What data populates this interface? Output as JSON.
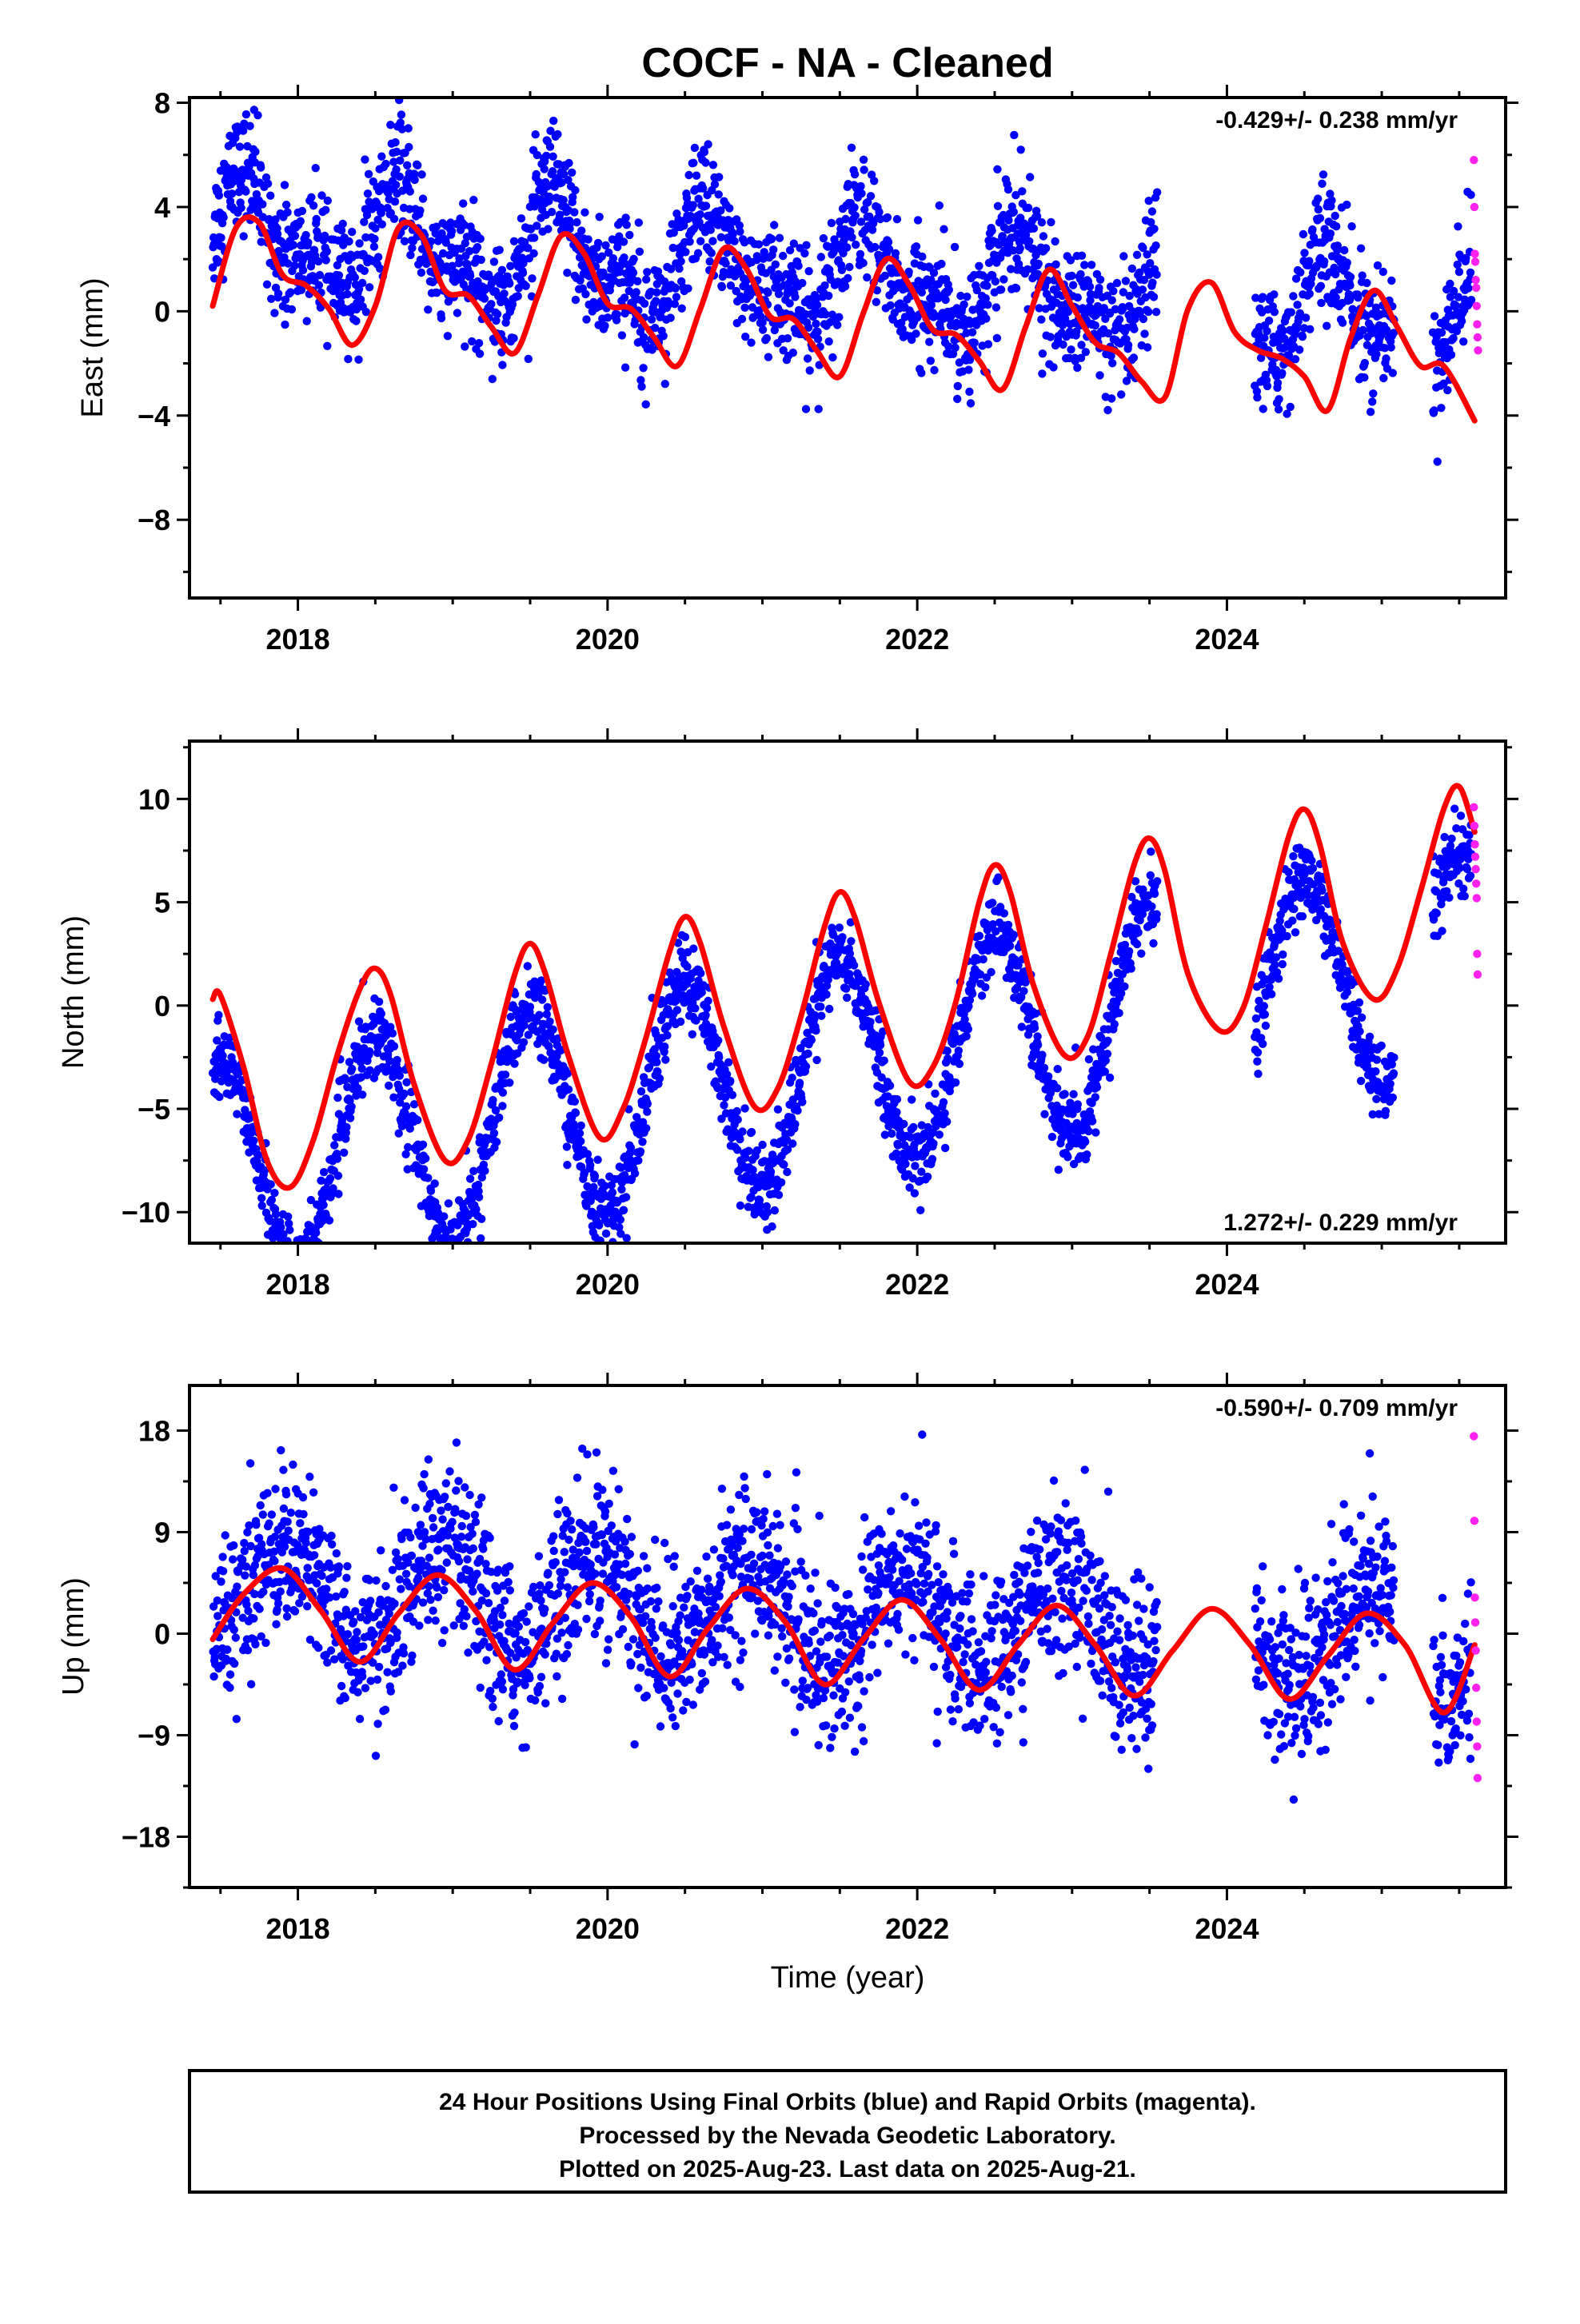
{
  "title": "COCF  - NA - Cleaned",
  "xlabel": "Time (year)",
  "footer": {
    "lines": [
      "24 Hour Positions Using Final Orbits (blue) and Rapid Orbits (magenta).",
      "Processed by the Nevada Geodetic Laboratory.",
      "Plotted on 2025-Aug-23. Last data on 2025-Aug-21."
    ]
  },
  "colors": {
    "final_orbits": "#0000ff",
    "rapid_orbits": "#ff22ee",
    "model_fit": "#ff0000",
    "frame": "#000000"
  },
  "chart_data": [
    {
      "type": "scatter",
      "ylabel": "East (mm)",
      "rate_label": "-0.429+/- 0.238 mm/yr",
      "rate_position": "top-right",
      "xlim": [
        2017.3,
        2025.8
      ],
      "ylim": [
        -11,
        8.2
      ],
      "xticks": [
        2018,
        2020,
        2022,
        2024
      ],
      "xtick_labels": [
        "2018",
        "2020",
        "2022",
        "2024"
      ],
      "yticks": [
        -8,
        -4,
        0,
        4,
        8
      ],
      "ytick_labels": [
        "−8",
        "−4",
        "0",
        "4",
        "8"
      ],
      "grid": false,
      "series": [
        {
          "role": "final_orbits",
          "segments": [
            [
              2017.45,
              2023.55
            ],
            [
              2024.18,
              2025.08
            ],
            [
              2025.33,
              2025.58
            ]
          ],
          "trend_mm_per_yr": -0.429,
          "offset_mm": 1.3,
          "annual_amplitude_mm": 1.7,
          "annual_peak_year": 2017.67,
          "semiannual_amplitude_mm": 0.9,
          "semiannual_peak_year": 2017.62,
          "noise_sd_mm": 1.15
        },
        {
          "role": "rapid_orbits",
          "x": [
            2025.595,
            2025.598,
            2025.601,
            2025.604,
            2025.607,
            2025.61,
            2025.613,
            2025.616,
            2025.619,
            2025.622
          ],
          "y": [
            5.8,
            4.0,
            2.2,
            1.9,
            1.2,
            0.9,
            0.2,
            -0.5,
            -1.0,
            -1.5
          ]
        },
        {
          "role": "model_fit",
          "x": [
            2017.45,
            2017.6,
            2017.75,
            2017.9,
            2018.05,
            2018.2,
            2018.35,
            2018.5,
            2018.65,
            2018.8,
            2018.95,
            2019.1,
            2019.25,
            2019.4,
            2019.55,
            2019.7,
            2019.85,
            2020.0,
            2020.15,
            2020.3,
            2020.45,
            2020.6,
            2020.75,
            2020.9,
            2021.05,
            2021.2,
            2021.35,
            2021.5,
            2021.65,
            2021.8,
            2021.95,
            2022.1,
            2022.25,
            2022.4,
            2022.55,
            2022.7,
            2022.85,
            2023.0,
            2023.15,
            2023.3,
            2023.45,
            2023.6,
            2023.75,
            2023.9,
            2024.05,
            2024.2,
            2024.35,
            2024.5,
            2024.65,
            2024.8,
            2024.95,
            2025.1,
            2025.25,
            2025.4,
            2025.6
          ],
          "y": [
            0.2,
            3.2,
            3.4,
            1.4,
            1.0,
            0.1,
            -1.3,
            0.2,
            3.2,
            2.9,
            0.8,
            0.6,
            -0.6,
            -1.6,
            0.6,
            2.9,
            2.2,
            0.3,
            0.1,
            -1.0,
            -2.1,
            0.1,
            2.4,
            1.6,
            -0.2,
            -0.3,
            -1.5,
            -2.5,
            -0.1,
            2.0,
            1.0,
            -0.7,
            -0.9,
            -1.9,
            -3.0,
            -0.6,
            1.6,
            0.2,
            -1.2,
            -1.6,
            -2.7,
            -3.3,
            0.1,
            1.1,
            -0.8,
            -1.5,
            -1.8,
            -2.5,
            -3.8,
            -1.0,
            0.8,
            -0.6,
            -2.1,
            -2.1,
            -4.2
          ]
        }
      ]
    },
    {
      "type": "scatter",
      "ylabel": "North (mm)",
      "rate_label": "1.272+/- 0.229 mm/yr",
      "rate_position": "bottom-right",
      "xlim": [
        2017.3,
        2025.8
      ],
      "ylim": [
        -11.5,
        12.8
      ],
      "xticks": [
        2018,
        2020,
        2022,
        2024
      ],
      "xtick_labels": [
        "2018",
        "2020",
        "2022",
        "2024"
      ],
      "yticks": [
        -10,
        -5,
        0,
        5,
        10
      ],
      "ytick_labels": [
        "−10",
        "−5",
        "0",
        "5",
        "10"
      ],
      "grid": false,
      "series": [
        {
          "role": "final_orbits",
          "segments": [
            [
              2017.45,
              2023.55
            ],
            [
              2024.18,
              2025.08
            ],
            [
              2025.33,
              2025.58
            ]
          ],
          "trend_mm_per_yr": 1.272,
          "offset_mm": -2.9,
          "annual_amplitude_mm": 5.2,
          "annual_peak_year": 2017.5,
          "semiannual_amplitude_mm": 0.0,
          "semiannual_peak_year": 2017.5,
          "noise_sd_mm": 0.95
        },
        {
          "role": "rapid_orbits",
          "x": [
            2025.595,
            2025.598,
            2025.601,
            2025.604,
            2025.607,
            2025.61,
            2025.613,
            2025.616,
            2025.619
          ],
          "y": [
            9.6,
            8.7,
            7.8,
            7.2,
            6.6,
            5.9,
            5.2,
            2.5,
            1.5
          ]
        },
        {
          "role": "model_fit",
          "x": [
            2017.45,
            2017.5,
            2017.65,
            2017.8,
            2017.95,
            2018.1,
            2018.25,
            2018.4,
            2018.5,
            2018.6,
            2018.75,
            2018.95,
            2019.1,
            2019.25,
            2019.4,
            2019.5,
            2019.6,
            2019.75,
            2019.95,
            2020.1,
            2020.25,
            2020.4,
            2020.5,
            2020.6,
            2020.75,
            2020.95,
            2021.1,
            2021.25,
            2021.4,
            2021.5,
            2021.6,
            2021.75,
            2021.95,
            2022.1,
            2022.25,
            2022.4,
            2022.5,
            2022.6,
            2022.75,
            2022.95,
            2023.1,
            2023.25,
            2023.4,
            2023.5,
            2023.6,
            2023.75,
            2023.95,
            2024.1,
            2024.25,
            2024.4,
            2024.5,
            2024.6,
            2024.75,
            2024.95,
            2025.1,
            2025.25,
            2025.4,
            2025.5,
            2025.6
          ],
          "y": [
            0.3,
            0.5,
            -3.0,
            -7.5,
            -8.8,
            -6.5,
            -2.5,
            0.8,
            1.8,
            0.5,
            -3.8,
            -7.5,
            -6.5,
            -2.8,
            1.5,
            3.0,
            1.5,
            -2.5,
            -6.4,
            -5.0,
            -1.5,
            2.6,
            4.3,
            3.0,
            -1.0,
            -4.9,
            -4.0,
            -0.5,
            3.8,
            5.5,
            4.2,
            0.2,
            -3.7,
            -3.0,
            0.2,
            5.0,
            6.8,
            5.5,
            1.0,
            -2.4,
            -1.5,
            2.5,
            6.8,
            8.1,
            6.5,
            1.5,
            -1.2,
            -0.2,
            3.8,
            8.2,
            9.5,
            7.8,
            3.0,
            0.3,
            1.8,
            5.5,
            9.5,
            10.6,
            8.4
          ]
        }
      ]
    },
    {
      "type": "scatter",
      "ylabel": "Up (mm)",
      "rate_label": "-0.590+/- 0.709 mm/yr",
      "rate_position": "top-right",
      "xlim": [
        2017.3,
        2025.8
      ],
      "ylim": [
        -22.5,
        22
      ],
      "xticks": [
        2018,
        2020,
        2022,
        2024
      ],
      "xtick_labels": [
        "2018",
        "2020",
        "2022",
        "2024"
      ],
      "yticks": [
        -18,
        -9,
        0,
        9,
        18
      ],
      "ytick_labels": [
        "−18",
        "−9",
        "0",
        "9",
        "18"
      ],
      "grid": false,
      "series": [
        {
          "role": "final_orbits",
          "segments": [
            [
              2017.45,
              2023.55
            ],
            [
              2024.18,
              2025.08
            ],
            [
              2025.33,
              2025.58
            ]
          ],
          "trend_mm_per_yr": -0.59,
          "offset_mm": 1.7,
          "annual_amplitude_mm": 4.4,
          "annual_peak_year": 2017.92,
          "semiannual_amplitude_mm": 0.0,
          "semiannual_peak_year": 2017.92,
          "noise_sd_mm": 3.6
        },
        {
          "role": "rapid_orbits",
          "x": [
            2025.595,
            2025.598,
            2025.601,
            2025.604,
            2025.607,
            2025.61,
            2025.613,
            2025.616,
            2025.619
          ],
          "y": [
            17.5,
            10.0,
            3.2,
            1.0,
            -1.5,
            -4.8,
            -7.8,
            -10.0,
            -12.8
          ]
        },
        {
          "role": "model_fit",
          "x": [
            2017.45,
            2017.65,
            2017.9,
            2018.15,
            2018.4,
            2018.65,
            2018.9,
            2019.15,
            2019.4,
            2019.65,
            2019.9,
            2020.15,
            2020.4,
            2020.65,
            2020.9,
            2021.15,
            2021.4,
            2021.65,
            2021.9,
            2022.15,
            2022.4,
            2022.65,
            2022.9,
            2023.15,
            2023.4,
            2023.65,
            2023.9,
            2024.15,
            2024.4,
            2024.65,
            2024.9,
            2025.15,
            2025.4,
            2025.6
          ],
          "y": [
            -0.5,
            3.5,
            5.8,
            2.0,
            -2.5,
            1.8,
            5.2,
            2.0,
            -3.2,
            1.0,
            4.5,
            1.5,
            -3.8,
            0.5,
            4.0,
            1.0,
            -4.5,
            -0.5,
            3.0,
            -0.5,
            -5.0,
            -1.0,
            2.5,
            -1.0,
            -5.5,
            -1.5,
            2.2,
            -1.0,
            -5.8,
            -2.0,
            1.8,
            -1.0,
            -7.0,
            -1.0
          ]
        }
      ]
    }
  ]
}
